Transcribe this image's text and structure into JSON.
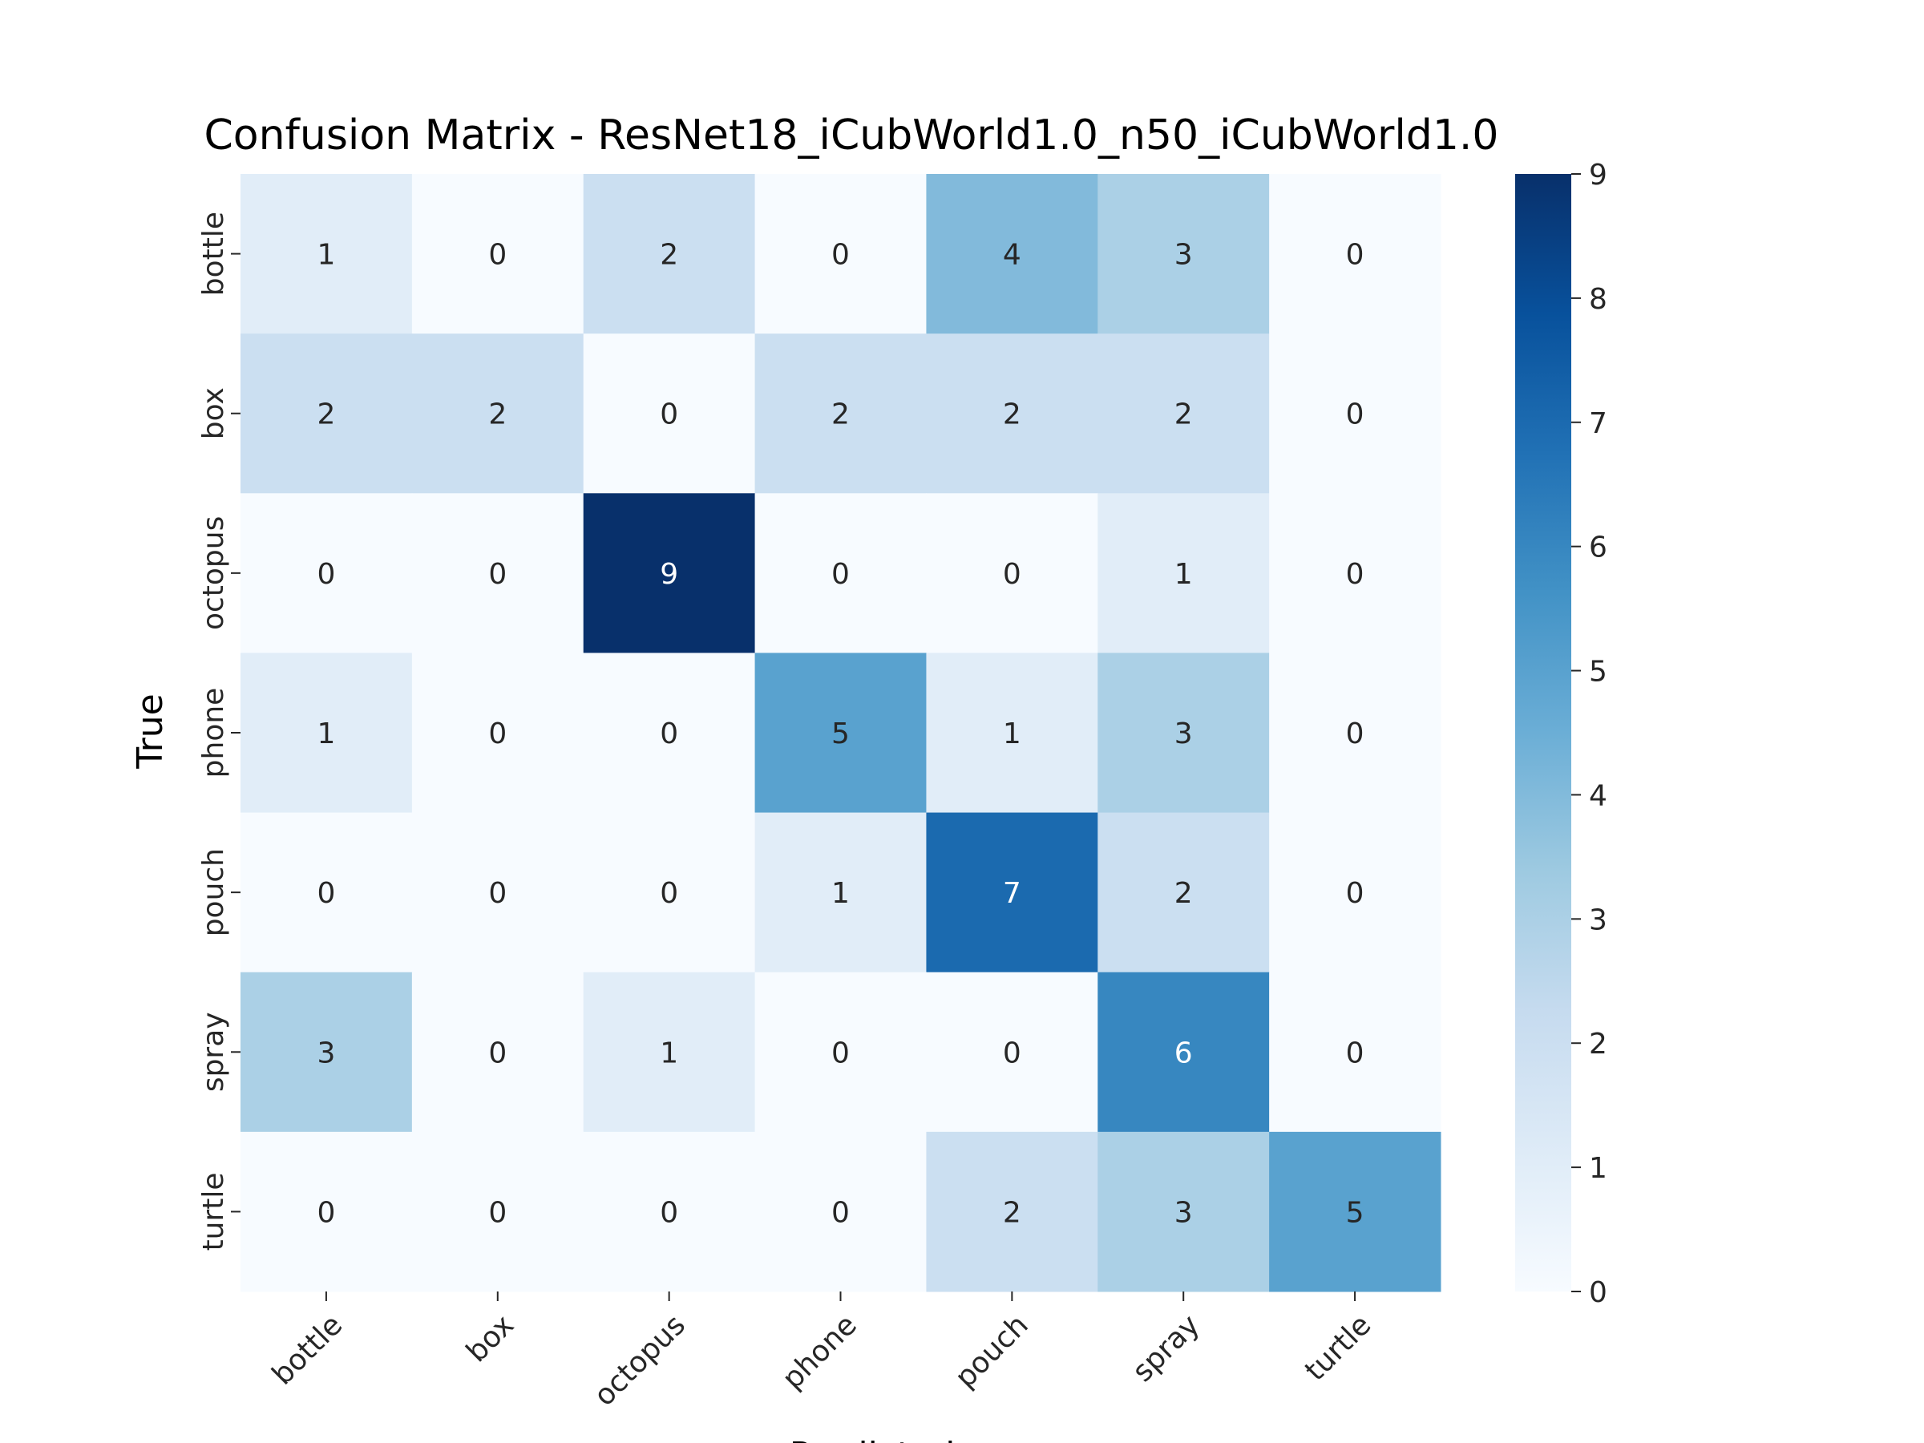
{
  "chart_data": {
    "type": "heatmap",
    "title": "Confusion Matrix - ResNet18_iCubWorld1.0_n50_iCubWorld1.0",
    "xlabel": "Predicted",
    "ylabel": "True",
    "x_categories": [
      "bottle",
      "box",
      "octopus",
      "phone",
      "pouch",
      "spray",
      "turtle"
    ],
    "y_categories": [
      "bottle",
      "box",
      "octopus",
      "phone",
      "pouch",
      "spray",
      "turtle"
    ],
    "matrix": [
      [
        1,
        0,
        2,
        0,
        4,
        3,
        0
      ],
      [
        2,
        2,
        0,
        2,
        2,
        2,
        0
      ],
      [
        0,
        0,
        9,
        0,
        0,
        1,
        0
      ],
      [
        1,
        0,
        0,
        5,
        1,
        3,
        0
      ],
      [
        0,
        0,
        0,
        1,
        7,
        2,
        0
      ],
      [
        3,
        0,
        1,
        0,
        0,
        6,
        0
      ],
      [
        0,
        0,
        0,
        0,
        2,
        3,
        5
      ]
    ],
    "colorbar": {
      "min": 0,
      "max": 9,
      "ticks": [
        0,
        1,
        2,
        3,
        4,
        5,
        6,
        7,
        8,
        9
      ],
      "colormap": "Blues"
    },
    "annotated": true
  }
}
